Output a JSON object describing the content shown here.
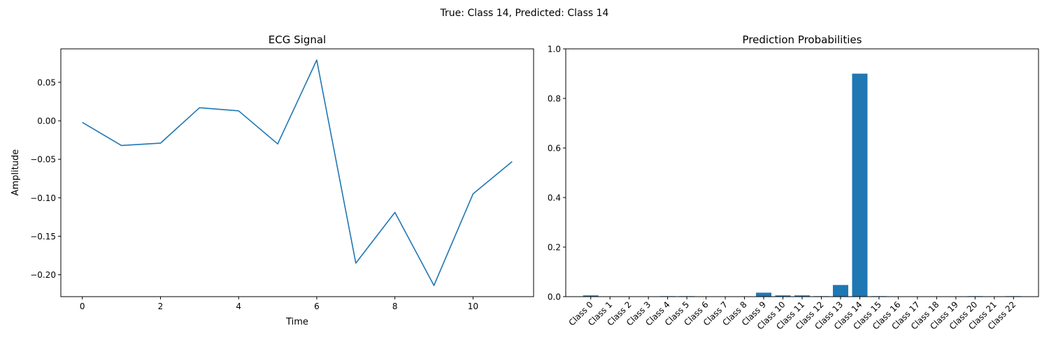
{
  "figure": {
    "suptitle": "True: Class 14, Predicted: Class 14"
  },
  "colors": {
    "series": "#1f77b4",
    "axis": "#000000",
    "background": "#ffffff"
  },
  "chart_data": [
    {
      "type": "line",
      "title": "ECG Signal",
      "xlabel": "Time",
      "ylabel": "Amplitude",
      "x": [
        0,
        1,
        2,
        3,
        4,
        5,
        6,
        7,
        8,
        9,
        10,
        11
      ],
      "y": [
        -0.002,
        -0.032,
        -0.029,
        0.017,
        0.013,
        -0.03,
        0.079,
        -0.185,
        -0.119,
        -0.214,
        -0.095,
        -0.053
      ],
      "xlim": [
        -0.55,
        11.55
      ],
      "ylim": [
        -0.2285,
        0.0935
      ],
      "xticks": [
        0,
        2,
        4,
        6,
        8,
        10
      ],
      "xtick_labels": [
        "0",
        "2",
        "4",
        "6",
        "8",
        "10"
      ],
      "yticks": [
        -0.2,
        -0.15,
        -0.1,
        -0.05,
        0.0,
        0.05
      ],
      "ytick_labels": [
        "−0.20",
        "−0.15",
        "−0.10",
        "−0.05",
        "0.00",
        "0.05"
      ],
      "grid": false
    },
    {
      "type": "bar",
      "title": "Prediction Probabilities",
      "xlabel": "",
      "ylabel": "",
      "categories": [
        "Class 0",
        "Class 1",
        "Class 2",
        "Class 3",
        "Class 4",
        "Class 5",
        "Class 6",
        "Class 7",
        "Class 8",
        "Class 9",
        "Class 10",
        "Class 11",
        "Class 12",
        "Class 13",
        "Class 14",
        "Class 15",
        "Class 16",
        "Class 17",
        "Class 18",
        "Class 19",
        "Class 20",
        "Class 21",
        "Class 22"
      ],
      "values": [
        0.005,
        0.001,
        0.0005,
        0.0005,
        0.002,
        0.002,
        0.0005,
        0.0005,
        0.0005,
        0.016,
        0.005,
        0.005,
        0.002,
        0.047,
        0.9,
        0.002,
        0.0005,
        0.0005,
        0.0005,
        0.0005,
        0.002,
        0.0005,
        0.002
      ],
      "ylim": [
        0,
        1.0
      ],
      "yticks": [
        0.0,
        0.2,
        0.4,
        0.6,
        0.8,
        1.0
      ],
      "ytick_labels": [
        "0.0",
        "0.2",
        "0.4",
        "0.6",
        "0.8",
        "1.0"
      ],
      "tick_rotation": 45,
      "grid": false
    }
  ]
}
